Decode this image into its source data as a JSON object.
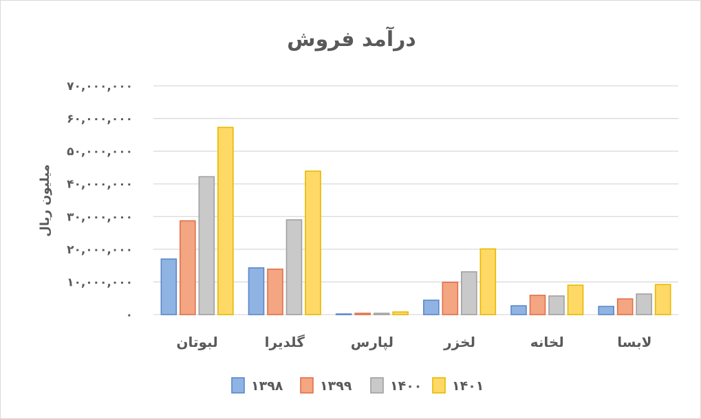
{
  "chart_data": {
    "type": "bar",
    "title": "درآمد فروش",
    "ylabel": "میلیون ریال",
    "xlabel": "",
    "ylim": [
      0,
      70000000
    ],
    "yticks": [
      0,
      10000000,
      20000000,
      30000000,
      40000000,
      50000000,
      60000000,
      70000000
    ],
    "ytick_labels": [
      "۰",
      "۱۰,۰۰۰,۰۰۰",
      "۲۰,۰۰۰,۰۰۰",
      "۳۰,۰۰۰,۰۰۰",
      "۴۰,۰۰۰,۰۰۰",
      "۵۰,۰۰۰,۰۰۰",
      "۶۰,۰۰۰,۰۰۰",
      "۷۰,۰۰۰,۰۰۰"
    ],
    "grid": true,
    "legend_position": "bottom",
    "categories": [
      "لبوتان",
      "گلدیرا",
      "لپارس",
      "لخزر",
      "لخانه",
      "لابسا"
    ],
    "series": [
      {
        "name": "۱۳۹۸",
        "color": "#8fb3e3",
        "values": [
          17000000,
          14300000,
          200000,
          4400000,
          2700000,
          2500000
        ]
      },
      {
        "name": "۱۳۹۹",
        "color": "#f4a582",
        "values": [
          28700000,
          13900000,
          400000,
          9900000,
          5900000,
          4800000
        ]
      },
      {
        "name": "۱۴۰۰",
        "color": "#c9c9c9",
        "values": [
          42200000,
          29000000,
          400000,
          13100000,
          5700000,
          6300000
        ]
      },
      {
        "name": "۱۴۰۱",
        "color": "#ffd966",
        "values": [
          57300000,
          43900000,
          800000,
          20100000,
          9000000,
          9200000
        ]
      }
    ],
    "border_colors": [
      "#5b87c8",
      "#e0704a",
      "#a0a0a0",
      "#e8b800"
    ]
  }
}
